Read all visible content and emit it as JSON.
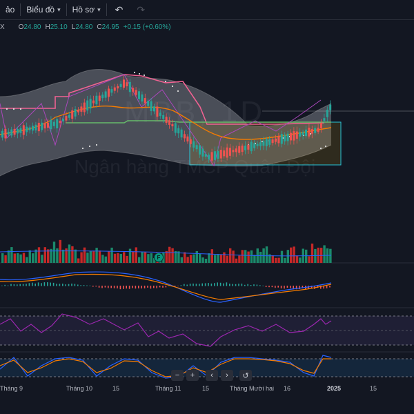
{
  "toolbar": {
    "item1": "ảo",
    "chart_menu": "Biểu đồ",
    "profile_menu": "Hồ sơ",
    "undo_icon": "undo-icon",
    "redo_icon": "redo-icon"
  },
  "legend": {
    "symbol_fragment": "X",
    "open_label": "O",
    "open": "24.80",
    "high_label": "H",
    "high": "25.10",
    "low_label": "L",
    "low": "24.80",
    "close_label": "C",
    "close": "24.95",
    "change": "+0.15 (+0.60%)"
  },
  "watermark": {
    "symbol": "MBB, 1D",
    "name": "Ngân hàng TMCP Quân Đội"
  },
  "badge": "F",
  "nav": [
    "−",
    "+",
    "‹",
    "›",
    "↺"
  ],
  "time_axis": [
    "Tháng 9",
    "Tháng 10",
    "15",
    "Tháng 11",
    "15",
    "Tháng Mười hai",
    "16",
    "2025",
    "15"
  ],
  "colors": {
    "up": "#26a69a",
    "down": "#ef5350",
    "background": "#131722",
    "band": "#b2b5be",
    "ema": "#f57c00",
    "rsi": "#9c27b0",
    "macd": "#2962ff"
  }
}
